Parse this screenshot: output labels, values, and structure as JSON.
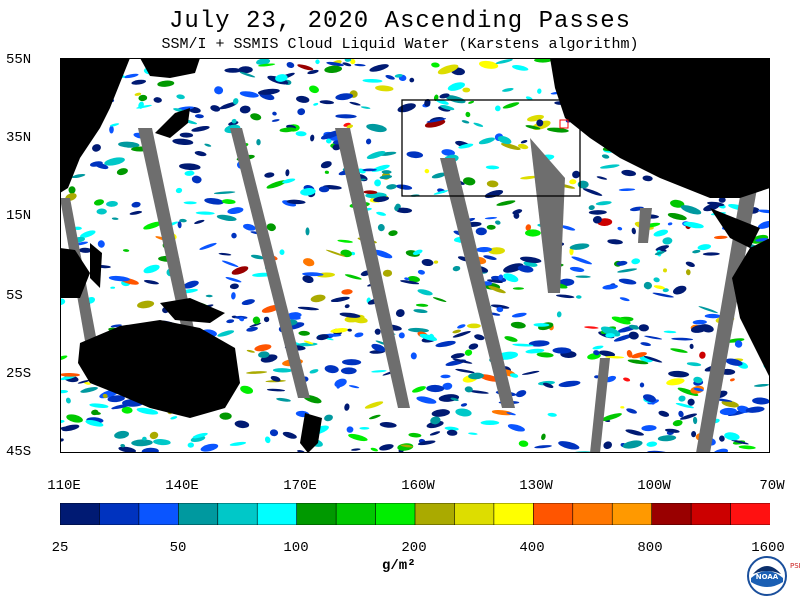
{
  "title": "July 23, 2020  Ascending Passes",
  "subtitle": "SSM/I + SSMIS Cloud Liquid Water (Karstens algorithm)",
  "map": {
    "lat_labels": [
      "55N",
      "35N",
      "15N",
      "5S",
      "25S",
      "45S"
    ],
    "lon_labels": [
      "110E",
      "140E",
      "170E",
      "160W",
      "130W",
      "100W",
      "70W"
    ]
  },
  "colorbar": {
    "colors": [
      "#001a73",
      "#0033bf",
      "#0a55ff",
      "#00999f",
      "#00c8c8",
      "#00ffff",
      "#009900",
      "#00c800",
      "#00ee00",
      "#aaaa00",
      "#dddd00",
      "#ffff00",
      "#ff5500",
      "#ff7700",
      "#ff9900",
      "#990000",
      "#cc0000",
      "#ff1111"
    ],
    "labels": [
      "25",
      "50",
      "100",
      "200",
      "400",
      "800",
      "1600"
    ],
    "units": "g/m²"
  },
  "logo": {
    "icon": "noaa-logo-icon",
    "text": "NOAA",
    "side_text": "PSL"
  }
}
